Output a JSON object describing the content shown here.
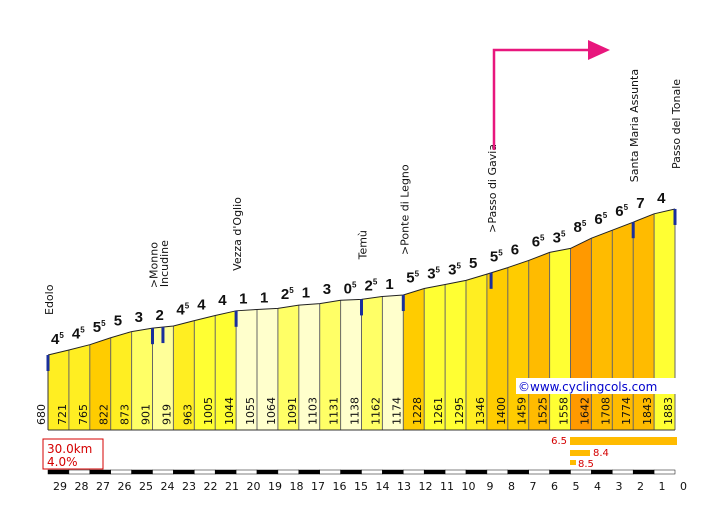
{
  "chart_data": {
    "type": "area",
    "title": "",
    "xlabel": "",
    "ylabel": "",
    "x_ticks": [
      "29",
      "28",
      "27",
      "26",
      "25",
      "24",
      "23",
      "22",
      "21",
      "20",
      "19",
      "18",
      "17",
      "16",
      "15",
      "14",
      "13",
      "12",
      "11",
      "10",
      "9",
      "8",
      "7",
      "6",
      "5",
      "4",
      "3",
      "2",
      "1",
      "0"
    ],
    "start_elevation": "680",
    "end_elevation": "1883",
    "segments": [
      {
        "elev": "721",
        "grade": "4",
        "sup": "5"
      },
      {
        "elev": "765",
        "grade": "4",
        "sup": "5"
      },
      {
        "elev": "822",
        "grade": "5",
        "sup": "5"
      },
      {
        "elev": "873",
        "grade": "5",
        "sup": ""
      },
      {
        "elev": "901",
        "grade": "3",
        "sup": ""
      },
      {
        "elev": "919",
        "grade": "2",
        "sup": ""
      },
      {
        "elev": "963",
        "grade": "4",
        "sup": "5"
      },
      {
        "elev": "1005",
        "grade": "4",
        "sup": ""
      },
      {
        "elev": "1044",
        "grade": "4",
        "sup": ""
      },
      {
        "elev": "1055",
        "grade": "1",
        "sup": ""
      },
      {
        "elev": "1064",
        "grade": "1",
        "sup": ""
      },
      {
        "elev": "1091",
        "grade": "2",
        "sup": "5"
      },
      {
        "elev": "1103",
        "grade": "1",
        "sup": ""
      },
      {
        "elev": "1131",
        "grade": "3",
        "sup": ""
      },
      {
        "elev": "1138",
        "grade": "0",
        "sup": "5"
      },
      {
        "elev": "1162",
        "grade": "2",
        "sup": "5"
      },
      {
        "elev": "1174",
        "grade": "1",
        "sup": ""
      },
      {
        "elev": "1228",
        "grade": "5",
        "sup": "5"
      },
      {
        "elev": "1261",
        "grade": "3",
        "sup": "5"
      },
      {
        "elev": "1295",
        "grade": "3",
        "sup": "5"
      },
      {
        "elev": "1346",
        "grade": "5",
        "sup": ""
      },
      {
        "elev": "1400",
        "grade": "5",
        "sup": "5"
      },
      {
        "elev": "1459",
        "grade": "6",
        "sup": ""
      },
      {
        "elev": "1525",
        "grade": "6",
        "sup": "5"
      },
      {
        "elev": "1558",
        "grade": "3",
        "sup": "5"
      },
      {
        "elev": "1642",
        "grade": "8",
        "sup": "5"
      },
      {
        "elev": "1708",
        "grade": "6",
        "sup": "5"
      },
      {
        "elev": "1774",
        "grade": "6",
        "sup": "5"
      },
      {
        "elev": "1843",
        "grade": "7",
        "sup": ""
      },
      {
        "elev": "1883",
        "grade": "4",
        "sup": ""
      }
    ],
    "places": [
      {
        "name": "Edolo",
        "km": 30
      },
      {
        "name": ">Monno",
        "km": 25
      },
      {
        "name": "Incudine",
        "km": 24.5
      },
      {
        "name": "Vezza d'Oglio",
        "km": 21
      },
      {
        "name": "Temù",
        "km": 15
      },
      {
        "name": ">Ponte di Legno",
        "km": 13
      },
      {
        "name": ">Passo di Gavia",
        "km": 8.8
      },
      {
        "name": "Santa Maria Assunta",
        "km": 2
      },
      {
        "name": "Passo del Tonale",
        "km": 0
      }
    ],
    "summary": {
      "distance": "30.0km",
      "avg_grade": "4.0%"
    },
    "steepest": [
      "6.5",
      "8.4",
      "8.5"
    ],
    "credit": "©www.cyclingcols.com",
    "arrow_color": "#e8177d"
  }
}
